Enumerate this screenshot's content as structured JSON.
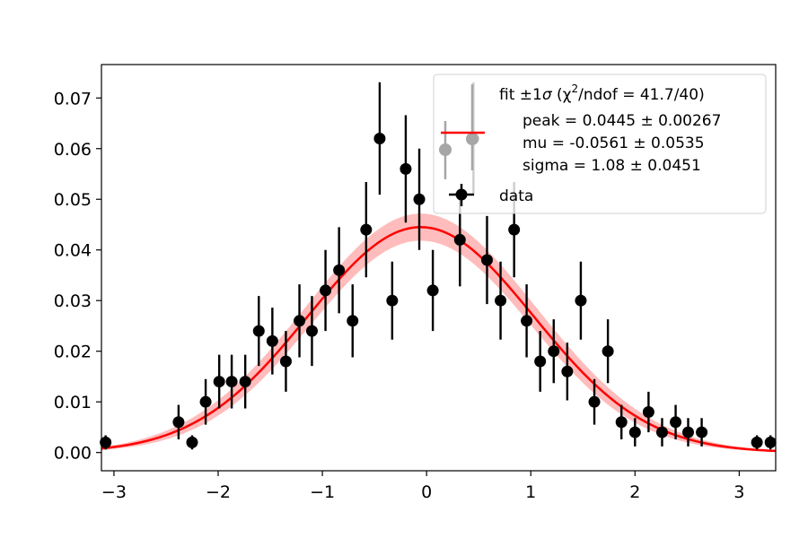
{
  "chart_data": {
    "type": "scatter",
    "title": "",
    "xlabel": "",
    "ylabel": "",
    "xlim": [
      -3.12,
      3.35
    ],
    "ylim": [
      -0.0036,
      0.0766
    ],
    "x_ticks": [
      -3,
      -2,
      -1,
      0,
      1,
      2,
      3
    ],
    "x_tick_labels": [
      "−3",
      "−2",
      "−1",
      "0",
      "1",
      "2",
      "3"
    ],
    "y_ticks": [
      0.0,
      0.01,
      0.02,
      0.03,
      0.04,
      0.05,
      0.06,
      0.07
    ],
    "y_tick_labels": [
      "0.00",
      "0.01",
      "0.02",
      "0.03",
      "0.04",
      "0.05",
      "0.06",
      "0.07"
    ],
    "grid": false,
    "legend_position": "top-right",
    "legend": {
      "fit_label_prefix": "fit ±1",
      "fit_label_sigma": "σ",
      "fit_label_chi_open": " (χ",
      "fit_label_sup": "2",
      "fit_label_rest": "/ndof = 41.7/40)",
      "fit_params": [
        "peak = 0.0445 ± 0.00267",
        "mu = -0.0561 ± 0.0535",
        "sigma = 1.08 ± 0.0451"
      ],
      "data_label": "data"
    },
    "fit": {
      "name": "fit",
      "model": "gaussian",
      "peak": 0.0445,
      "peak_err": 0.00267,
      "mu": -0.0561,
      "mu_err": 0.0535,
      "sigma": 1.08,
      "sigma_err": 0.0451,
      "chi2": 41.7,
      "ndof": 40
    },
    "series": [
      {
        "name": "data",
        "points": [
          {
            "x": -3.08,
            "y": 0.002,
            "yerr": 0.0014
          },
          {
            "x": -2.38,
            "y": 0.006,
            "yerr": 0.0034
          },
          {
            "x": -2.25,
            "y": 0.002,
            "yerr": 0.0014
          },
          {
            "x": -2.12,
            "y": 0.01,
            "yerr": 0.0045
          },
          {
            "x": -1.99,
            "y": 0.014,
            "yerr": 0.0053
          },
          {
            "x": -1.87,
            "y": 0.014,
            "yerr": 0.0053
          },
          {
            "x": -1.74,
            "y": 0.014,
            "yerr": 0.0053
          },
          {
            "x": -1.61,
            "y": 0.024,
            "yerr": 0.0069
          },
          {
            "x": -1.48,
            "y": 0.022,
            "yerr": 0.0066
          },
          {
            "x": -1.35,
            "y": 0.018,
            "yerr": 0.006
          },
          {
            "x": -1.22,
            "y": 0.026,
            "yerr": 0.0072
          },
          {
            "x": -1.1,
            "y": 0.024,
            "yerr": 0.0069
          },
          {
            "x": -0.97,
            "y": 0.032,
            "yerr": 0.008
          },
          {
            "x": -0.84,
            "y": 0.036,
            "yerr": 0.0085
          },
          {
            "x": -0.71,
            "y": 0.026,
            "yerr": 0.0072
          },
          {
            "x": -0.58,
            "y": 0.044,
            "yerr": 0.0094
          },
          {
            "x": -0.45,
            "y": 0.062,
            "yerr": 0.0111
          },
          {
            "x": -0.33,
            "y": 0.03,
            "yerr": 0.0077
          },
          {
            "x": -0.2,
            "y": 0.056,
            "yerr": 0.0106
          },
          {
            "x": -0.07,
            "y": 0.05,
            "yerr": 0.01
          },
          {
            "x": 0.06,
            "y": 0.032,
            "yerr": 0.008
          },
          {
            "x": 0.32,
            "y": 0.042,
            "yerr": 0.0092
          },
          {
            "x": 0.45,
            "y": 0.062,
            "yerr": 0.0111
          },
          {
            "x": 0.58,
            "y": 0.038,
            "yerr": 0.0087
          },
          {
            "x": 0.71,
            "y": 0.03,
            "yerr": 0.0077
          },
          {
            "x": 0.84,
            "y": 0.044,
            "yerr": 0.0094
          },
          {
            "x": 0.96,
            "y": 0.026,
            "yerr": 0.0072
          },
          {
            "x": 1.09,
            "y": 0.018,
            "yerr": 0.006
          },
          {
            "x": 1.22,
            "y": 0.02,
            "yerr": 0.0063
          },
          {
            "x": 1.35,
            "y": 0.016,
            "yerr": 0.0057
          },
          {
            "x": 1.48,
            "y": 0.03,
            "yerr": 0.0077
          },
          {
            "x": 1.61,
            "y": 0.01,
            "yerr": 0.0045
          },
          {
            "x": 1.74,
            "y": 0.02,
            "yerr": 0.0063
          },
          {
            "x": 1.87,
            "y": 0.006,
            "yerr": 0.0034
          },
          {
            "x": 2.0,
            "y": 0.004,
            "yerr": 0.0028
          },
          {
            "x": 2.13,
            "y": 0.008,
            "yerr": 0.004
          },
          {
            "x": 2.26,
            "y": 0.004,
            "yerr": 0.0028
          },
          {
            "x": 2.39,
            "y": 0.006,
            "yerr": 0.0034
          },
          {
            "x": 2.51,
            "y": 0.004,
            "yerr": 0.0028
          },
          {
            "x": 2.64,
            "y": 0.004,
            "yerr": 0.0028
          },
          {
            "x": 3.17,
            "y": 0.002,
            "yerr": 0.0014
          },
          {
            "x": 3.3,
            "y": 0.002,
            "yerr": 0.0014
          }
        ]
      }
    ],
    "colors": {
      "data": "#000000",
      "fit_line": "#ff0000",
      "fit_band": "#ffbcbc",
      "legend_errorbar_grey": "#a6a6a6"
    }
  }
}
